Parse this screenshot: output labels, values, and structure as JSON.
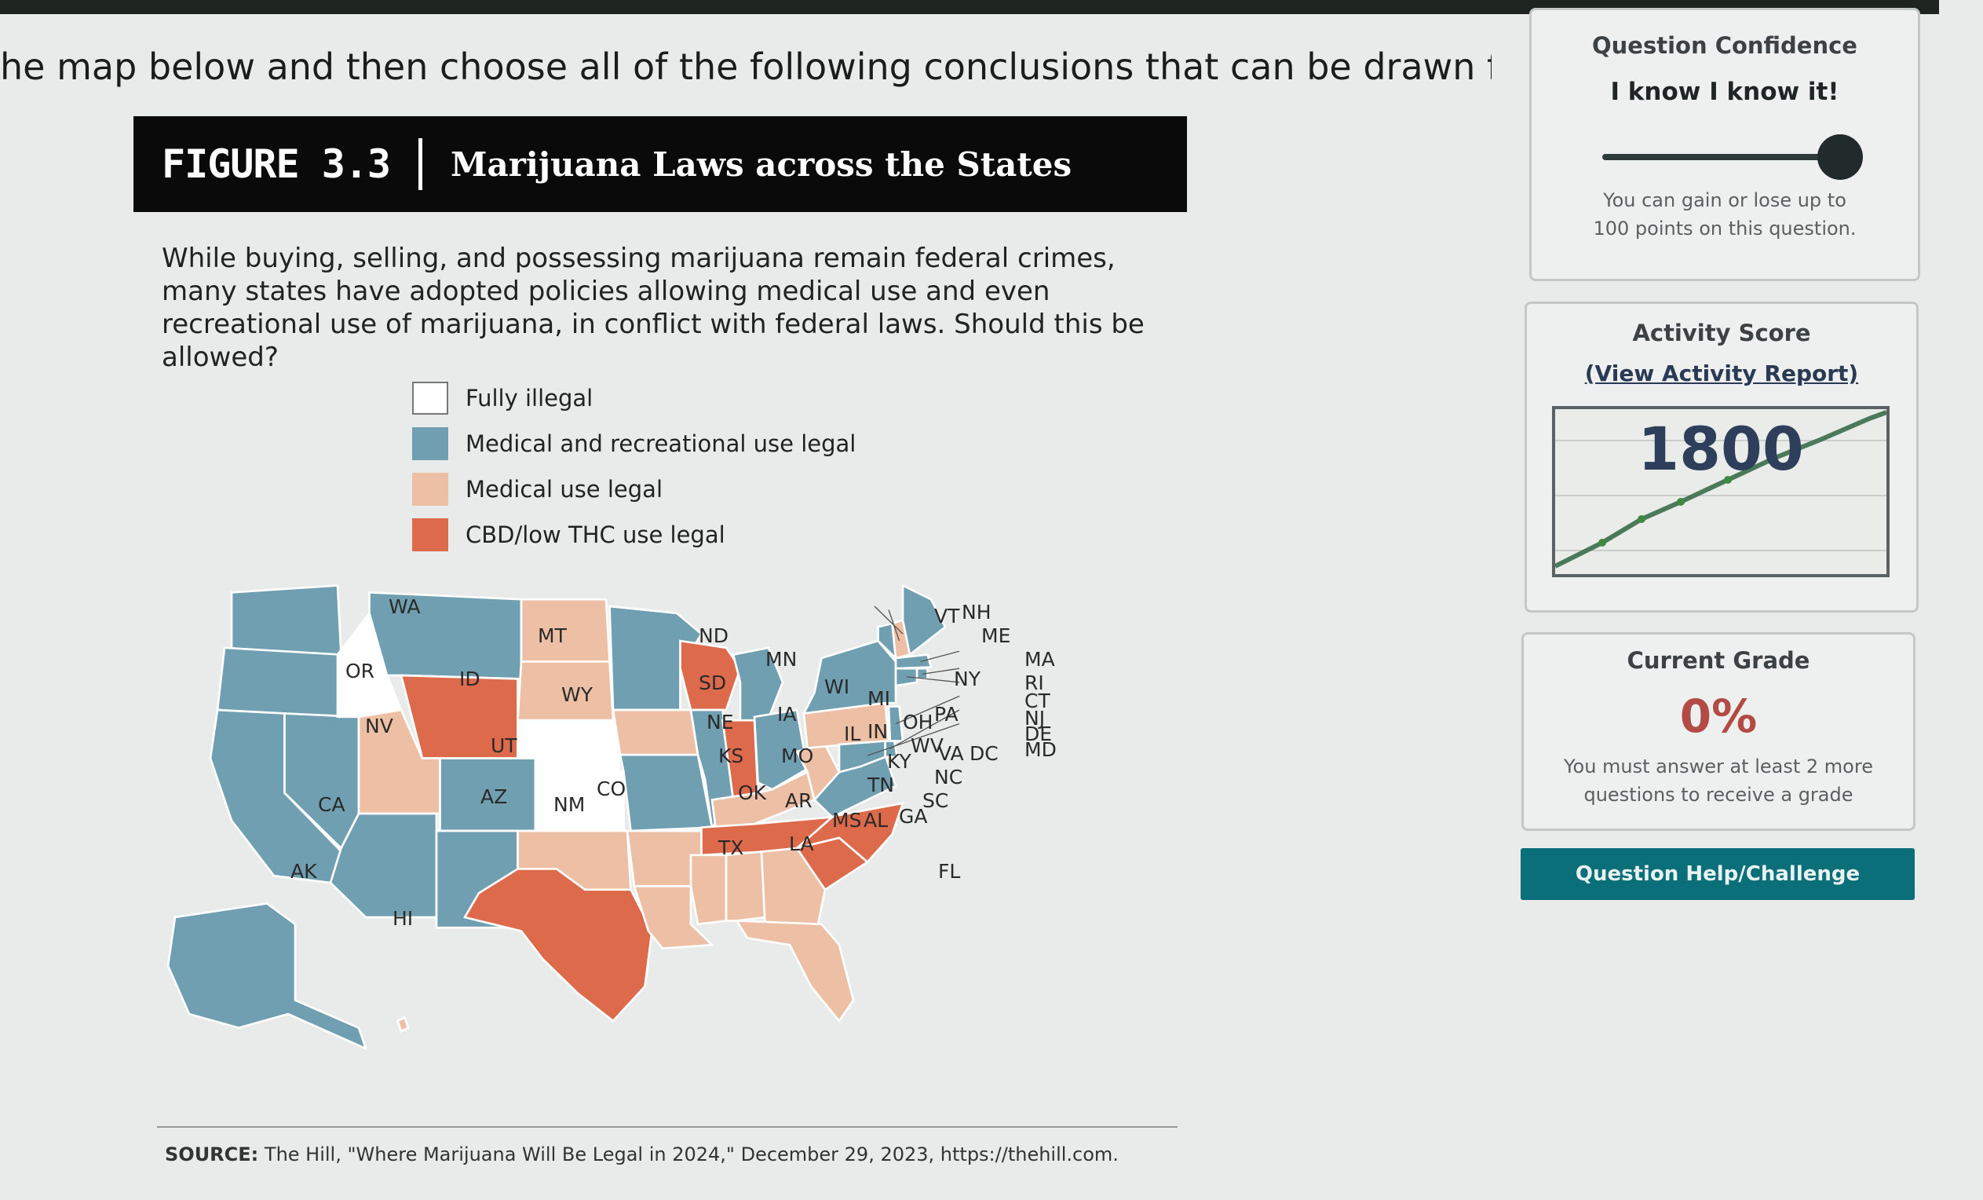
{
  "question": {
    "instruction": "he map below and then choose all of the following conclusions that can be drawn from it."
  },
  "figure": {
    "number": "FIGURE 3.3",
    "title": "Marijuana Laws across the States",
    "description": "While buying, selling, and possessing marijuana remain federal crimes, many states have adopted policies allowing medical use and even recreational use of marijuana, in conflict with federal laws. Should this be allowed?",
    "legend": [
      {
        "label": "Fully illegal",
        "color": "#ffffff"
      },
      {
        "label": "Medical and recreational use legal",
        "color": "#6f9fb0"
      },
      {
        "label": "Medical use legal",
        "color": "#edbfa4"
      },
      {
        "label": "CBD/low THC use legal",
        "color": "#dd6a4a"
      }
    ],
    "source_prefix": "SOURCE:",
    "source_text": "The Hill, \"Where Marijuana Will Be Legal in 2024,\" December 29, 2023, https://thehill.com.",
    "states": [
      {
        "code": "WA",
        "status": "full"
      },
      {
        "code": "OR",
        "status": "full"
      },
      {
        "code": "CA",
        "status": "full"
      },
      {
        "code": "NV",
        "status": "full"
      },
      {
        "code": "ID",
        "status": "illegal"
      },
      {
        "code": "MT",
        "status": "full"
      },
      {
        "code": "WY",
        "status": "cbd"
      },
      {
        "code": "UT",
        "status": "medical"
      },
      {
        "code": "AZ",
        "status": "full"
      },
      {
        "code": "CO",
        "status": "full"
      },
      {
        "code": "NM",
        "status": "full"
      },
      {
        "code": "ND",
        "status": "medical"
      },
      {
        "code": "SD",
        "status": "medical"
      },
      {
        "code": "NE",
        "status": "illegal"
      },
      {
        "code": "KS",
        "status": "illegal"
      },
      {
        "code": "OK",
        "status": "medical"
      },
      {
        "code": "TX",
        "status": "cbd"
      },
      {
        "code": "MN",
        "status": "full"
      },
      {
        "code": "IA",
        "status": "medical"
      },
      {
        "code": "MO",
        "status": "full"
      },
      {
        "code": "AR",
        "status": "medical"
      },
      {
        "code": "LA",
        "status": "medical"
      },
      {
        "code": "WI",
        "status": "cbd"
      },
      {
        "code": "IL",
        "status": "full"
      },
      {
        "code": "MI",
        "status": "full"
      },
      {
        "code": "IN",
        "status": "cbd"
      },
      {
        "code": "OH",
        "status": "full"
      },
      {
        "code": "KY",
        "status": "medical"
      },
      {
        "code": "TN",
        "status": "cbd"
      },
      {
        "code": "MS",
        "status": "medical"
      },
      {
        "code": "AL",
        "status": "medical"
      },
      {
        "code": "GA",
        "status": "medical"
      },
      {
        "code": "FL",
        "status": "medical"
      },
      {
        "code": "SC",
        "status": "cbd"
      },
      {
        "code": "NC",
        "status": "cbd"
      },
      {
        "code": "VA",
        "status": "full"
      },
      {
        "code": "WV",
        "status": "medical"
      },
      {
        "code": "PA",
        "status": "medical"
      },
      {
        "code": "NY",
        "status": "full"
      },
      {
        "code": "VT",
        "status": "full"
      },
      {
        "code": "NH",
        "status": "medical"
      },
      {
        "code": "ME",
        "status": "full"
      },
      {
        "code": "MA",
        "status": "full"
      },
      {
        "code": "RI",
        "status": "full"
      },
      {
        "code": "CT",
        "status": "full"
      },
      {
        "code": "NJ",
        "status": "full"
      },
      {
        "code": "DE",
        "status": "full"
      },
      {
        "code": "MD",
        "status": "full"
      },
      {
        "code": "DC",
        "status": "full"
      },
      {
        "code": "AK",
        "status": "full"
      },
      {
        "code": "HI",
        "status": "medical"
      }
    ]
  },
  "confidence": {
    "title": "Question Confidence",
    "level_label": "I know I know it!",
    "level_fraction": 1.0,
    "note_line1": "You can gain or lose up to",
    "note_line2": "100 points on this question."
  },
  "activity": {
    "title": "Activity Score",
    "link": "(View Activity Report)",
    "score": "1800"
  },
  "grade": {
    "title": "Current Grade",
    "value": "0%",
    "note_line1": "You must answer at least 2 more",
    "note_line2": "questions to receive a grade"
  },
  "help_button": "Question Help/Challenge",
  "colors": {
    "full": "#6f9fb0",
    "medical": "#edbfa4",
    "cbd": "#dd6a4a",
    "illegal": "#ffffff",
    "button": "#0a6f78"
  }
}
